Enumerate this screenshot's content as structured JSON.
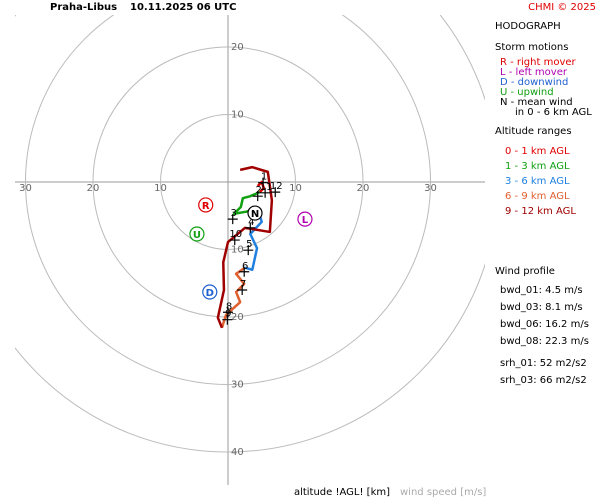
{
  "header": {
    "station": "Praha-Libus",
    "time": "10.11.2025 06 UTC",
    "credit": "CHMI © 2025"
  },
  "chart_data": {
    "type": "hodograph",
    "title": "HODOGRAPH",
    "xlabel": "altitude !AGL! [km]",
    "ylabel": "wind speed [m/s]",
    "rticks": [
      10,
      20,
      30,
      40
    ],
    "series": [
      {
        "name": "0 - 1 km AGL",
        "color": "#e00000",
        "u": [
          4.4,
          5.0,
          5.3,
          4.7
        ],
        "v": [
          -0.6,
          0,
          -0.9,
          -1.5
        ]
      },
      {
        "name": "1 - 3 km AGL",
        "color": "#10a010",
        "u": [
          4.7,
          3.3,
          2.2,
          1.9,
          0.9,
          2.7,
          4.4
        ],
        "v": [
          -1.5,
          -2.1,
          -2.4,
          -3.7,
          -4.7,
          -4.4,
          -3.9
        ]
      },
      {
        "name": "3 - 6 km AGL",
        "color": "#2080e0",
        "u": [
          4.4,
          5.0,
          3.3,
          4.3,
          3.6,
          2.5
        ],
        "v": [
          -3.9,
          -5.9,
          -7.7,
          -9.8,
          -13.0,
          -12.7
        ]
      },
      {
        "name": "6 - 9 km AGL",
        "color": "#e06030",
        "u": [
          2.5,
          1.2,
          2.4,
          1.2,
          1.8,
          -0.3,
          -0.9
        ],
        "v": [
          -12.7,
          -13.6,
          -15.1,
          -16.3,
          -17.8,
          -19.7,
          -21.6
        ]
      },
      {
        "name": "9 - 12 km AGL",
        "color": "#a00000",
        "u": [
          -0.9,
          -1.5,
          -0.6,
          -0.7,
          0,
          2.5,
          6.2,
          6.5,
          5.9,
          3.6,
          1.8
        ],
        "v": [
          -21.6,
          -20.1,
          -16.0,
          -11.9,
          -8.9,
          -6.8,
          -7.4,
          -2.7,
          1.5,
          2.2,
          1.8
        ]
      }
    ],
    "markers": [
      {
        "label": "1",
        "u": 5.2,
        "v": -0.1
      },
      {
        "label": "2",
        "u": 4.4,
        "v": -2.1
      },
      {
        "label": "3",
        "u": 0.7,
        "v": -5.5
      },
      {
        "label": "4",
        "u": 3.3,
        "v": -6.8
      },
      {
        "label": "5",
        "u": 3.0,
        "v": -10.1
      },
      {
        "label": "6",
        "u": 2.4,
        "v": -13.3
      },
      {
        "label": "7",
        "u": 2.1,
        "v": -16.0
      },
      {
        "label": "8",
        "u": 0,
        "v": -19.3
      },
      {
        "label": "9",
        "u": -0.1,
        "v": -20.4
      },
      {
        "label": "10",
        "u": 1.0,
        "v": -8.6
      },
      {
        "label": "11",
        "u": 5.5,
        "v": -1.6
      },
      {
        "label": "12",
        "u": 7.0,
        "v": -1.5
      }
    ],
    "storm_motions": [
      {
        "label": "R",
        "color": "#e00000",
        "u": -3.3,
        "v": -3.4
      },
      {
        "label": "L",
        "color": "#b000b0",
        "u": 11.4,
        "v": -5.5
      },
      {
        "label": "D",
        "color": "#2060d0",
        "u": -2.7,
        "v": -16.3
      },
      {
        "label": "U",
        "color": "#10a010",
        "u": -4.6,
        "v": -7.7
      },
      {
        "label": "N",
        "color": "#000000",
        "u": 4.0,
        "v": -4.6
      }
    ],
    "storm_legend": {
      "title": "Storm motions",
      "items": [
        {
          "text": "R - right mover",
          "color": "#e00000"
        },
        {
          "text": "L - left mover",
          "color": "#b000b0"
        },
        {
          "text": "D - downwind",
          "color": "#2060d0"
        },
        {
          "text": "U - upwind",
          "color": "#10a010"
        },
        {
          "text": "N - mean wind",
          "color": "#000000"
        }
      ],
      "note": "in 0 - 6 km AGL"
    },
    "altitude_title": "Altitude ranges",
    "wind_profile": {
      "title": "Wind profile",
      "items": [
        "bwd_01: 4.5 m/s",
        "bwd_03: 8.1 m/s",
        "bwd_06: 16.2 m/s",
        "bwd_08: 22.3 m/s",
        "srh_01: 52 m2/s2",
        "srh_03: 66 m2/s2"
      ]
    }
  }
}
